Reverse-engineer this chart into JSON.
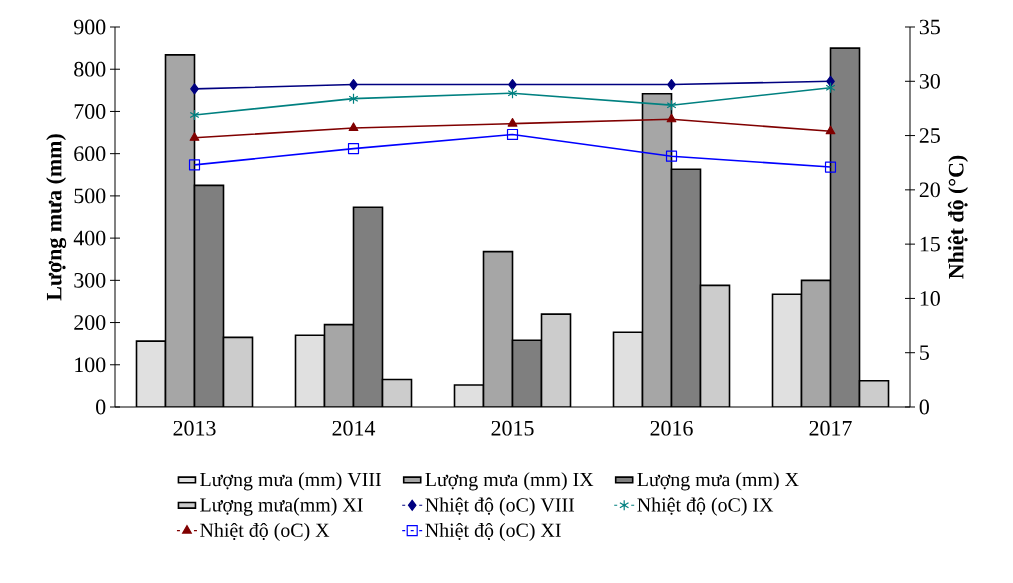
{
  "chart_data": {
    "type": "bar",
    "categories": [
      "2013",
      "2014",
      "2015",
      "2016",
      "2017"
    ],
    "ylabel": "Lượng mưa (mm)",
    "y2label": "Nhiệt độ (°C)",
    "ylim": [
      0,
      900
    ],
    "yticks": [
      0,
      100,
      200,
      300,
      400,
      500,
      600,
      700,
      800,
      900
    ],
    "y2lim": [
      0,
      35
    ],
    "y2ticks": [
      0,
      5,
      10,
      15,
      20,
      25,
      30,
      35
    ],
    "legend": "bottom",
    "series": [
      {
        "name": "Lượng mưa (mm) VIII",
        "color": "#e0e0e0",
        "values": [
          156,
          170,
          52,
          177,
          267
        ]
      },
      {
        "name": "Lượng mưa (mm) IX",
        "color": "#a6a6a6",
        "values": [
          834,
          195,
          368,
          742,
          300
        ]
      },
      {
        "name": "Lượng mưa (mm) X",
        "color": "#7f7f7f",
        "values": [
          525,
          473,
          158,
          563,
          850
        ]
      },
      {
        "name": "Lượng mưa(mm) XI",
        "color": "#cccccc",
        "values": [
          165,
          65,
          220,
          288,
          62
        ]
      },
      {
        "name": "Nhiệt độ (oC) VIII",
        "type": "line",
        "axis": "y2",
        "color": "#000080",
        "marker": "diamond",
        "values": [
          29.3,
          29.7,
          29.7,
          29.7,
          30.0
        ]
      },
      {
        "name": "Nhiệt độ (oC) IX",
        "type": "line",
        "axis": "y2",
        "color": "#008080",
        "marker": "cross",
        "values": [
          26.9,
          28.4,
          28.9,
          27.8,
          29.4
        ]
      },
      {
        "name": "Nhiệt độ (oC) X",
        "type": "line",
        "axis": "y2",
        "color": "#800000",
        "marker": "triangle",
        "values": [
          24.8,
          25.7,
          26.1,
          26.5,
          25.4
        ]
      },
      {
        "name": "Nhiệt độ (oC) XI",
        "type": "line",
        "axis": "y2",
        "color": "#0000ff",
        "marker": "square",
        "values": [
          22.3,
          23.8,
          25.1,
          23.1,
          22.1
        ]
      }
    ]
  }
}
